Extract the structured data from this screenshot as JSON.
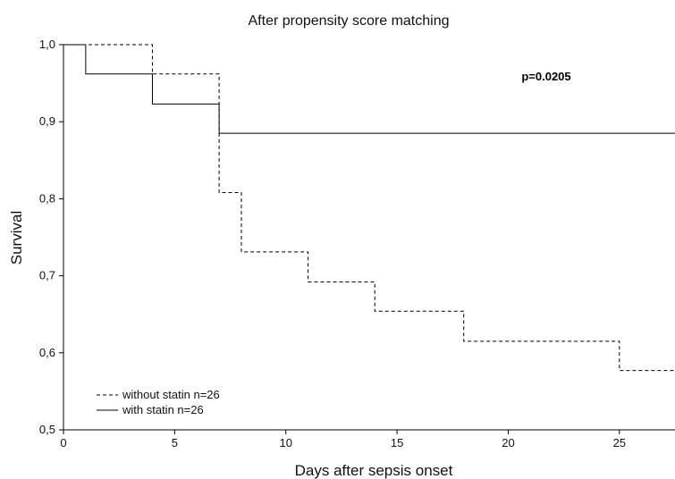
{
  "chart_data": {
    "type": "line",
    "step": true,
    "title": "After propensity score matching",
    "xlabel": "Days after sepsis onset",
    "ylabel": "Survival",
    "xlim": [
      0,
      27.5
    ],
    "ylim": [
      0.5,
      1.0
    ],
    "x_ticks": [
      0,
      5,
      10,
      15,
      20,
      25
    ],
    "x_tick_labels": [
      "0",
      "5",
      "10",
      "15",
      "20",
      "25"
    ],
    "y_ticks": [
      0.5,
      0.6,
      0.7,
      0.8,
      0.9,
      1.0
    ],
    "y_tick_labels": [
      "0,5",
      "0,6",
      "0,7",
      "0,8",
      "0,9",
      "1,0"
    ],
    "annotation": "p=0.0205",
    "legend_position": "bottom-left",
    "grid": false,
    "series": [
      {
        "name": "without statin n=26",
        "style": "dashed",
        "x": [
          0,
          4,
          7,
          8,
          11,
          14,
          18,
          25,
          27.5
        ],
        "y": [
          1.0,
          0.962,
          0.808,
          0.731,
          0.692,
          0.654,
          0.615,
          0.577,
          0.577
        ]
      },
      {
        "name": "with statin n=26",
        "style": "solid",
        "x": [
          0,
          1,
          4,
          7,
          27.5
        ],
        "y": [
          1.0,
          0.962,
          0.923,
          0.885,
          0.885
        ]
      }
    ]
  }
}
